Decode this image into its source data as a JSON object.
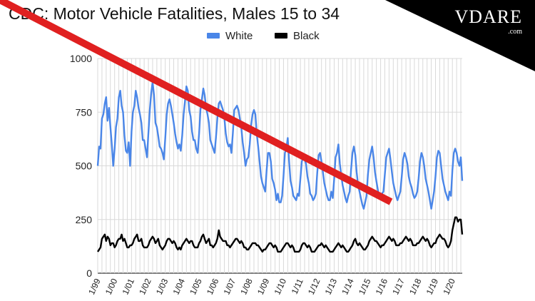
{
  "logo": {
    "text": "VDARE",
    "subtext": ".com"
  },
  "colors": {
    "white_series": "#4a86e8",
    "black_series": "#000000",
    "arrow": "#e02020",
    "grid": "#d9d9d9"
  },
  "chart_data": {
    "type": "line",
    "title": "CDC: Motor Vehicle Fatalities, Males 15 to 34",
    "xlabel": "",
    "ylabel": "",
    "ylim": [
      0,
      1000
    ],
    "yticks": [
      0,
      250,
      500,
      750,
      1000
    ],
    "grid": true,
    "legend_position": "top",
    "x_tick_labels": [
      "1/99",
      "1/00",
      "1/01",
      "1/02",
      "1/03",
      "1/04",
      "1/05",
      "1/06",
      "1/07",
      "1/08",
      "1/09",
      "1/10",
      "1/11",
      "1/12",
      "1/13",
      "1/14",
      "1/15",
      "1/16",
      "1/17",
      "1/18",
      "1/19",
      "1/20"
    ],
    "x_start": "1999-01",
    "frequency": "monthly",
    "series": [
      {
        "name": "White",
        "values": [
          500,
          590,
          580,
          720,
          740,
          790,
          820,
          710,
          770,
          680,
          600,
          500,
          580,
          680,
          720,
          820,
          850,
          780,
          750,
          640,
          570,
          560,
          610,
          500,
          660,
          750,
          780,
          850,
          820,
          770,
          740,
          700,
          620,
          620,
          580,
          540,
          650,
          760,
          840,
          890,
          830,
          700,
          680,
          640,
          590,
          580,
          560,
          530,
          630,
          740,
          790,
          810,
          780,
          740,
          700,
          650,
          610,
          580,
          600,
          570,
          640,
          740,
          800,
          870,
          850,
          760,
          730,
          660,
          620,
          620,
          580,
          560,
          650,
          760,
          810,
          860,
          830,
          770,
          740,
          700,
          620,
          600,
          580,
          560,
          630,
          720,
          790,
          800,
          780,
          760,
          720,
          650,
          610,
          590,
          600,
          560,
          650,
          760,
          770,
          780,
          760,
          720,
          680,
          610,
          560,
          500,
          530,
          540,
          600,
          690,
          740,
          760,
          740,
          650,
          590,
          520,
          450,
          420,
          400,
          380,
          480,
          560,
          560,
          520,
          440,
          420,
          390,
          340,
          370,
          330,
          330,
          360,
          450,
          560,
          580,
          630,
          520,
          430,
          400,
          360,
          350,
          340,
          370,
          360,
          440,
          520,
          540,
          530,
          510,
          450,
          420,
          370,
          360,
          340,
          350,
          370,
          470,
          550,
          560,
          520,
          470,
          420,
          390,
          360,
          340,
          340,
          380,
          350,
          440,
          540,
          560,
          600,
          510,
          460,
          410,
          380,
          350,
          330,
          360,
          380,
          480,
          560,
          590,
          550,
          470,
          410,
          380,
          350,
          320,
          300,
          330,
          360,
          460,
          530,
          560,
          590,
          540,
          470,
          430,
          390,
          360,
          350,
          370,
          380,
          460,
          540,
          560,
          580,
          530,
          470,
          420,
          390,
          360,
          340,
          360,
          380,
          450,
          530,
          560,
          540,
          510,
          450,
          420,
          400,
          370,
          350,
          360,
          380,
          440,
          520,
          560,
          540,
          500,
          440,
          410,
          380,
          340,
          300,
          340,
          380,
          450,
          540,
          570,
          560,
          500,
          440,
          410,
          380,
          360,
          340,
          380,
          360,
          480,
          560,
          580,
          560,
          520,
          500,
          540,
          430
        ]
      },
      {
        "name": "Black",
        "values": [
          100,
          110,
          120,
          160,
          170,
          180,
          150,
          170,
          160,
          130,
          140,
          140,
          120,
          130,
          150,
          160,
          160,
          180,
          150,
          160,
          140,
          120,
          120,
          130,
          130,
          140,
          160,
          170,
          180,
          150,
          150,
          160,
          130,
          120,
          120,
          120,
          130,
          150,
          160,
          170,
          160,
          140,
          150,
          160,
          130,
          120,
          110,
          120,
          130,
          150,
          160,
          160,
          150,
          140,
          150,
          140,
          120,
          110,
          120,
          110,
          130,
          140,
          150,
          160,
          150,
          140,
          150,
          150,
          130,
          120,
          120,
          120,
          140,
          150,
          170,
          180,
          160,
          140,
          150,
          160,
          130,
          130,
          120,
          130,
          140,
          160,
          200,
          170,
          160,
          150,
          150,
          150,
          130,
          130,
          120,
          130,
          140,
          150,
          160,
          160,
          150,
          140,
          150,
          140,
          120,
          120,
          110,
          110,
          120,
          130,
          140,
          140,
          140,
          130,
          130,
          120,
          110,
          100,
          110,
          110,
          120,
          130,
          140,
          140,
          130,
          120,
          130,
          120,
          100,
          100,
          100,
          110,
          120,
          130,
          140,
          140,
          130,
          120,
          130,
          120,
          100,
          100,
          100,
          100,
          110,
          130,
          140,
          140,
          130,
          120,
          130,
          120,
          100,
          100,
          100,
          110,
          120,
          130,
          130,
          140,
          130,
          120,
          130,
          120,
          110,
          100,
          100,
          100,
          110,
          120,
          130,
          140,
          130,
          120,
          130,
          120,
          110,
          100,
          100,
          110,
          120,
          130,
          150,
          160,
          140,
          130,
          140,
          130,
          120,
          110,
          110,
          120,
          130,
          150,
          160,
          170,
          160,
          150,
          150,
          140,
          130,
          120,
          130,
          130,
          140,
          150,
          160,
          170,
          160,
          150,
          160,
          150,
          130,
          130,
          130,
          140,
          140,
          150,
          160,
          170,
          160,
          150,
          160,
          150,
          130,
          130,
          130,
          140,
          140,
          150,
          160,
          170,
          160,
          150,
          160,
          150,
          130,
          120,
          130,
          140,
          140,
          160,
          170,
          180,
          170,
          160,
          160,
          150,
          130,
          120,
          130,
          150,
          200,
          230,
          260,
          260,
          240,
          250,
          250,
          180
        ]
      }
    ],
    "annotations": [
      {
        "type": "arrow",
        "points_to": {
          "x_index": 260,
          "series": "Black"
        }
      }
    ]
  }
}
